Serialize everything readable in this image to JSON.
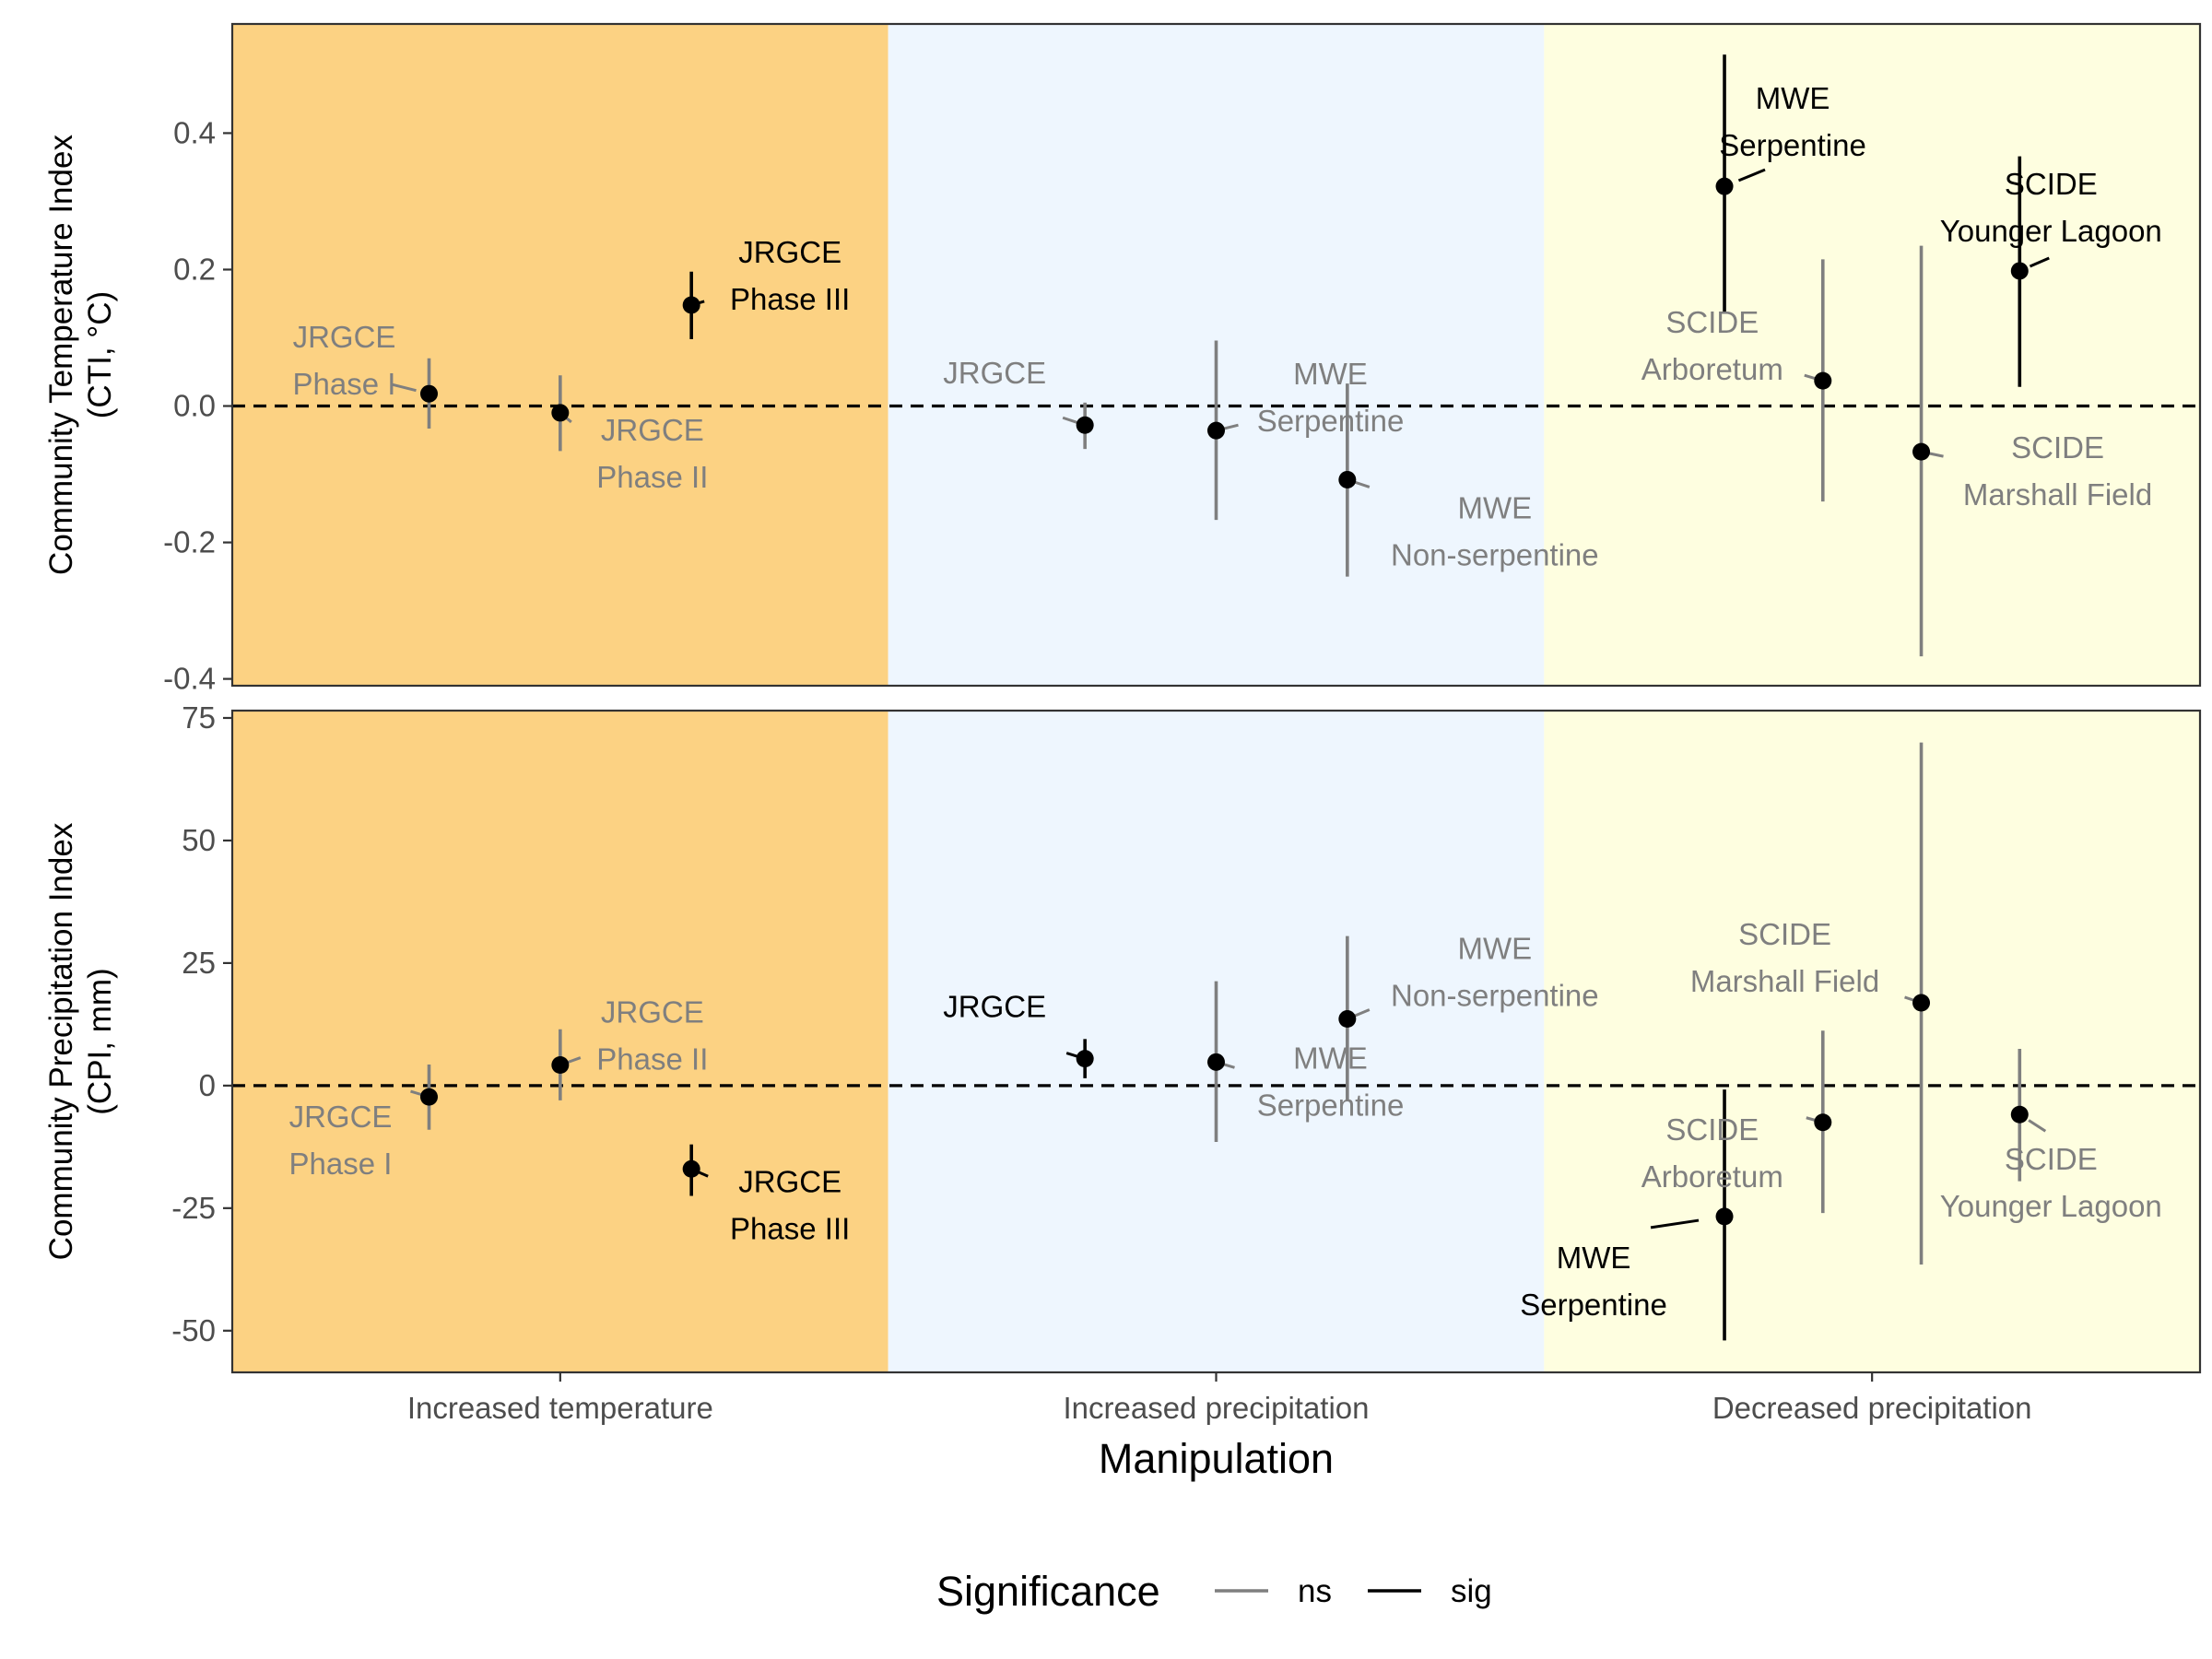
{
  "chart_data": {
    "type": "errorbar-faceted",
    "xlabel": "Manipulation",
    "categories": [
      "Increased temperature",
      "Increased precipitation",
      "Decreased precipitation"
    ],
    "background_colors": [
      "#fcd283",
      "#eef6fe",
      "#fefee0"
    ],
    "legend": {
      "title": "Significance",
      "entries": [
        {
          "key": "ns",
          "color": "#7f7f7f"
        },
        {
          "key": "sig",
          "color": "#000000"
        }
      ],
      "placement": "bottom"
    },
    "reference_line": 0,
    "panels": [
      {
        "id": "cti",
        "ylabel_lines": [
          "Community Temperature Index",
          "(CTI, °C)"
        ],
        "ylim": [
          -0.41,
          0.56
        ],
        "yticks": [
          0.4,
          0.2,
          0.0,
          -0.2,
          -0.4
        ],
        "ytick_labels": [
          "0.4",
          "0.2",
          "0.0",
          "-0.2",
          "-0.4"
        ],
        "points": [
          {
            "group": 0,
            "x": -0.2,
            "y": 0.018,
            "lo": -0.033,
            "hi": 0.07,
            "sig": "ns",
            "label_lines": [
              "JRGCE",
              "Phase I"
            ]
          },
          {
            "group": 0,
            "x": 0.0,
            "y": -0.01,
            "lo": -0.066,
            "hi": 0.045,
            "sig": "ns",
            "label_lines": [
              "JRGCE",
              "Phase II"
            ]
          },
          {
            "group": 0,
            "x": 0.2,
            "y": 0.148,
            "lo": 0.098,
            "hi": 0.197,
            "sig": "sig",
            "label_lines": [
              "JRGCE",
              "Phase III"
            ]
          },
          {
            "group": 1,
            "x": -0.2,
            "y": -0.028,
            "lo": -0.063,
            "hi": 0.005,
            "sig": "ns",
            "label_lines": [
              "JRGCE"
            ]
          },
          {
            "group": 1,
            "x": 0.0,
            "y": -0.036,
            "lo": -0.167,
            "hi": 0.096,
            "sig": "ns",
            "label_lines": [
              "MWE",
              "Serpentine"
            ]
          },
          {
            "group": 1,
            "x": 0.2,
            "y": -0.108,
            "lo": -0.25,
            "hi": 0.033,
            "sig": "ns",
            "label_lines": [
              "MWE",
              "Non-serpentine"
            ]
          },
          {
            "group": 2,
            "x": -0.225,
            "y": 0.322,
            "lo": 0.137,
            "hi": 0.515,
            "sig": "sig",
            "label_lines": [
              "MWE",
              "Serpentine"
            ]
          },
          {
            "group": 2,
            "x": -0.075,
            "y": 0.037,
            "lo": -0.14,
            "hi": 0.215,
            "sig": "ns",
            "label_lines": [
              "SCIDE",
              "Arboretum"
            ]
          },
          {
            "group": 2,
            "x": 0.075,
            "y": -0.067,
            "lo": -0.367,
            "hi": 0.235,
            "sig": "ns",
            "label_lines": [
              "SCIDE",
              "Marshall Field"
            ]
          },
          {
            "group": 2,
            "x": 0.225,
            "y": 0.198,
            "lo": 0.028,
            "hi": 0.366,
            "sig": "sig",
            "label_lines": [
              "SCIDE",
              "Younger Lagoon"
            ]
          }
        ]
      },
      {
        "id": "cpi",
        "ylabel_lines": [
          "Community Precipitation Index",
          "(CPI, mm)"
        ],
        "ylim": [
          -58.5,
          76.5
        ],
        "yticks": [
          75,
          50,
          25,
          0,
          -25,
          -50
        ],
        "ytick_labels": [
          "75",
          "50",
          "25",
          "0",
          "-25",
          "-50"
        ],
        "points": [
          {
            "group": 0,
            "x": -0.2,
            "y": -2.3,
            "lo": -9.0,
            "hi": 4.3,
            "sig": "ns",
            "label_lines": [
              "JRGCE",
              "Phase I"
            ]
          },
          {
            "group": 0,
            "x": 0.0,
            "y": 4.2,
            "lo": -3.0,
            "hi": 11.5,
            "sig": "ns",
            "label_lines": [
              "JRGCE",
              "Phase II"
            ]
          },
          {
            "group": 0,
            "x": 0.2,
            "y": -17.0,
            "lo": -22.5,
            "hi": -12.0,
            "sig": "sig",
            "label_lines": [
              "JRGCE",
              "Phase III"
            ]
          },
          {
            "group": 1,
            "x": -0.2,
            "y": 5.5,
            "lo": 1.5,
            "hi": 9.5,
            "sig": "sig",
            "label_lines": [
              "JRGCE"
            ]
          },
          {
            "group": 1,
            "x": 0.0,
            "y": 4.8,
            "lo": -11.5,
            "hi": 21.3,
            "sig": "ns",
            "label_lines": [
              "MWE",
              "Serpentine"
            ]
          },
          {
            "group": 1,
            "x": 0.2,
            "y": 13.6,
            "lo": -3.0,
            "hi": 30.5,
            "sig": "ns",
            "label_lines": [
              "MWE",
              "Non-serpentine"
            ]
          },
          {
            "group": 2,
            "x": -0.225,
            "y": -26.7,
            "lo": -52.0,
            "hi": -0.8,
            "sig": "sig",
            "label_lines": [
              "MWE",
              "Serpentine"
            ]
          },
          {
            "group": 2,
            "x": -0.075,
            "y": -7.5,
            "lo": -26.0,
            "hi": 11.2,
            "sig": "ns",
            "label_lines": [
              "SCIDE",
              "Arboretum"
            ]
          },
          {
            "group": 2,
            "x": 0.075,
            "y": 16.9,
            "lo": -36.5,
            "hi": 70.0,
            "sig": "ns",
            "label_lines": [
              "SCIDE",
              "Marshall Field"
            ]
          },
          {
            "group": 2,
            "x": 0.225,
            "y": -5.9,
            "lo": -19.5,
            "hi": 7.5,
            "sig": "ns",
            "label_lines": [
              "SCIDE",
              "Younger Lagoon"
            ]
          }
        ]
      }
    ]
  }
}
